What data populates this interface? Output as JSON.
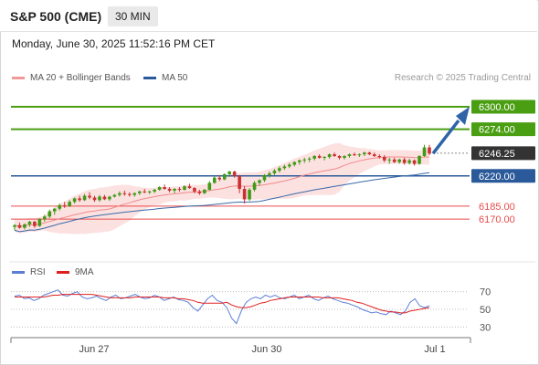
{
  "header": {
    "title": "S&P 500 (CME)",
    "timeframe": "30 MIN",
    "datetime": "Monday, June 30, 2025 11:52:16 PM CET"
  },
  "legend": {
    "bb_label": "MA 20 + Bollinger Bands",
    "ma50_label": "MA 50",
    "credit": "Research © 2025 Trading Central"
  },
  "rsi_legend": {
    "rsi_label": "RSI",
    "ma9_label": "9MA"
  },
  "colors": {
    "green": "#4a9e12",
    "blue": "#2b5a9a",
    "red": "#e84b4b",
    "candle_up": "#3f9b16",
    "candle_down": "#cc3030",
    "bb_fill": "#fbdada",
    "ma20": "#f08a8a",
    "ma50": "#3a6aa8",
    "arrow": "#2f63a8",
    "rsi": "#5b7fd6",
    "rsi_ma": "#e02020"
  },
  "chart_data": [
    {
      "type": "candlestick",
      "x_ticks": [
        "Jun 27",
        "Jun 30",
        "Jul 1"
      ],
      "ylim": [
        6130,
        6318
      ],
      "levels": [
        {
          "value": 6300.0,
          "label": "6300.00",
          "kind": "resistance"
        },
        {
          "value": 6274.0,
          "label": "6274.00",
          "kind": "resistance"
        },
        {
          "value": 6246.25,
          "label": "6246.25",
          "kind": "last_price"
        },
        {
          "value": 6220.0,
          "label": "6220.00",
          "kind": "pivot"
        },
        {
          "value": 6185.0,
          "label": "6185.00",
          "kind": "support"
        },
        {
          "value": 6170.0,
          "label": "6170.00",
          "kind": "support"
        }
      ],
      "forecast_target": 6300.0,
      "candles": [
        [
          6161,
          6164,
          6157,
          6163
        ],
        [
          6163,
          6166,
          6159,
          6160
        ],
        [
          6160,
          6165,
          6158,
          6164
        ],
        [
          6164,
          6168,
          6161,
          6167
        ],
        [
          6167,
          6168,
          6160,
          6162
        ],
        [
          6162,
          6171,
          6161,
          6170
        ],
        [
          6170,
          6175,
          6167,
          6173
        ],
        [
          6173,
          6181,
          6171,
          6179
        ],
        [
          6179,
          6183,
          6175,
          6182
        ],
        [
          6182,
          6188,
          6180,
          6186
        ],
        [
          6186,
          6190,
          6183,
          6185
        ],
        [
          6185,
          6192,
          6184,
          6190
        ],
        [
          6190,
          6195,
          6188,
          6194
        ],
        [
          6194,
          6197,
          6190,
          6192
        ],
        [
          6192,
          6199,
          6191,
          6197
        ],
        [
          6197,
          6201,
          6193,
          6195
        ],
        [
          6195,
          6197,
          6190,
          6192
        ],
        [
          6192,
          6198,
          6190,
          6196
        ],
        [
          6196,
          6198,
          6192,
          6193
        ],
        [
          6193,
          6197,
          6191,
          6196
        ],
        [
          6196,
          6199,
          6195,
          6198
        ],
        [
          6198,
          6202,
          6196,
          6200
        ],
        [
          6200,
          6203,
          6197,
          6199
        ],
        [
          6199,
          6201,
          6196,
          6198
        ],
        [
          6198,
          6201,
          6196,
          6200
        ],
        [
          6200,
          6203,
          6198,
          6202
        ],
        [
          6202,
          6205,
          6200,
          6201
        ],
        [
          6201,
          6203,
          6199,
          6202
        ],
        [
          6202,
          6205,
          6200,
          6204
        ],
        [
          6204,
          6208,
          6203,
          6207
        ],
        [
          6207,
          6210,
          6204,
          6205
        ],
        [
          6205,
          6207,
          6201,
          6203
        ],
        [
          6203,
          6206,
          6200,
          6205
        ],
        [
          6205,
          6207,
          6202,
          6204
        ],
        [
          6204,
          6209,
          6203,
          6208
        ],
        [
          6208,
          6211,
          6205,
          6206
        ],
        [
          6206,
          6207,
          6200,
          6202
        ],
        [
          6202,
          6204,
          6198,
          6200
        ],
        [
          6200,
          6205,
          6199,
          6204
        ],
        [
          6204,
          6214,
          6203,
          6212
        ],
        [
          6212,
          6220,
          6211,
          6218
        ],
        [
          6218,
          6221,
          6214,
          6216
        ],
        [
          6216,
          6223,
          6215,
          6222
        ],
        [
          6222,
          6226,
          6219,
          6225
        ],
        [
          6225,
          6226,
          6218,
          6220
        ],
        [
          6220,
          6221,
          6200,
          6205
        ],
        [
          6205,
          6208,
          6188,
          6193
        ],
        [
          6193,
          6206,
          6191,
          6204
        ],
        [
          6204,
          6214,
          6202,
          6212
        ],
        [
          6212,
          6216,
          6209,
          6215
        ],
        [
          6215,
          6222,
          6213,
          6221
        ],
        [
          6221,
          6225,
          6218,
          6223
        ],
        [
          6223,
          6228,
          6221,
          6226
        ],
        [
          6226,
          6231,
          6224,
          6229
        ],
        [
          6229,
          6233,
          6227,
          6231
        ],
        [
          6231,
          6235,
          6229,
          6233
        ],
        [
          6233,
          6237,
          6231,
          6236
        ],
        [
          6236,
          6239,
          6233,
          6238
        ],
        [
          6238,
          6241,
          6235,
          6239
        ],
        [
          6239,
          6242,
          6236,
          6240
        ],
        [
          6240,
          6244,
          6238,
          6243
        ],
        [
          6243,
          6245,
          6240,
          6241
        ],
        [
          6241,
          6243,
          6238,
          6242
        ],
        [
          6242,
          6246,
          6240,
          6245
        ],
        [
          6245,
          6247,
          6242,
          6243
        ],
        [
          6243,
          6244,
          6239,
          6241
        ],
        [
          6241,
          6244,
          6239,
          6243
        ],
        [
          6243,
          6246,
          6241,
          6245
        ],
        [
          6245,
          6247,
          6243,
          6244
        ],
        [
          6244,
          6246,
          6242,
          6245
        ],
        [
          6245,
          6248,
          6243,
          6247
        ],
        [
          6247,
          6248,
          6244,
          6245
        ],
        [
          6245,
          6247,
          6242,
          6243
        ],
        [
          6243,
          6245,
          6240,
          6242
        ],
        [
          6242,
          6244,
          6236,
          6238
        ],
        [
          6238,
          6241,
          6234,
          6239
        ],
        [
          6239,
          6241,
          6235,
          6236
        ],
        [
          6236,
          6240,
          6234,
          6239
        ],
        [
          6239,
          6241,
          6233,
          6235
        ],
        [
          6235,
          6240,
          6233,
          6238
        ],
        [
          6238,
          6239,
          6232,
          6234
        ],
        [
          6234,
          6244,
          6233,
          6243
        ],
        [
          6243,
          6256,
          6242,
          6253
        ],
        [
          6253,
          6256,
          6244,
          6246
        ]
      ]
    },
    {
      "type": "line",
      "name": "RSI",
      "ylim": [
        20,
        80
      ],
      "y_ticks": [
        70,
        50,
        30
      ],
      "series": [
        {
          "name": "RSI",
          "values": [
            65,
            66,
            62,
            63,
            60,
            62,
            66,
            68,
            70,
            72,
            66,
            65,
            68,
            70,
            64,
            62,
            63,
            65,
            62,
            60,
            64,
            66,
            62,
            63,
            65,
            67,
            64,
            62,
            63,
            66,
            64,
            60,
            62,
            64,
            61,
            60,
            58,
            52,
            48,
            55,
            62,
            66,
            60,
            58,
            52,
            40,
            34,
            48,
            58,
            62,
            64,
            62,
            66,
            64,
            66,
            63,
            62,
            64,
            66,
            62,
            64,
            66,
            62,
            60,
            63,
            65,
            62,
            60,
            58,
            57,
            55,
            53,
            50,
            48,
            46,
            47,
            45,
            44,
            48,
            46,
            44,
            48,
            58,
            62,
            54,
            52,
            54
          ]
        },
        {
          "name": "9MA",
          "values": [
            64,
            64,
            64,
            64,
            64,
            64,
            64,
            65,
            66,
            66,
            67,
            67,
            67,
            67,
            67,
            67,
            67,
            66,
            65,
            64,
            63,
            63,
            63,
            63,
            63,
            64,
            64,
            64,
            64,
            64,
            64,
            63,
            63,
            63,
            62,
            62,
            61,
            60,
            58,
            57,
            57,
            57,
            57,
            57,
            58,
            55,
            53,
            52,
            52,
            53,
            55,
            57,
            58,
            60,
            61,
            62,
            63,
            64,
            64,
            64,
            64,
            64,
            64,
            64,
            63,
            63,
            63,
            63,
            62,
            61,
            60,
            58,
            57,
            55,
            53,
            51,
            49,
            48,
            47,
            47,
            46,
            46,
            48,
            49,
            50,
            51,
            52
          ]
        }
      ]
    }
  ]
}
